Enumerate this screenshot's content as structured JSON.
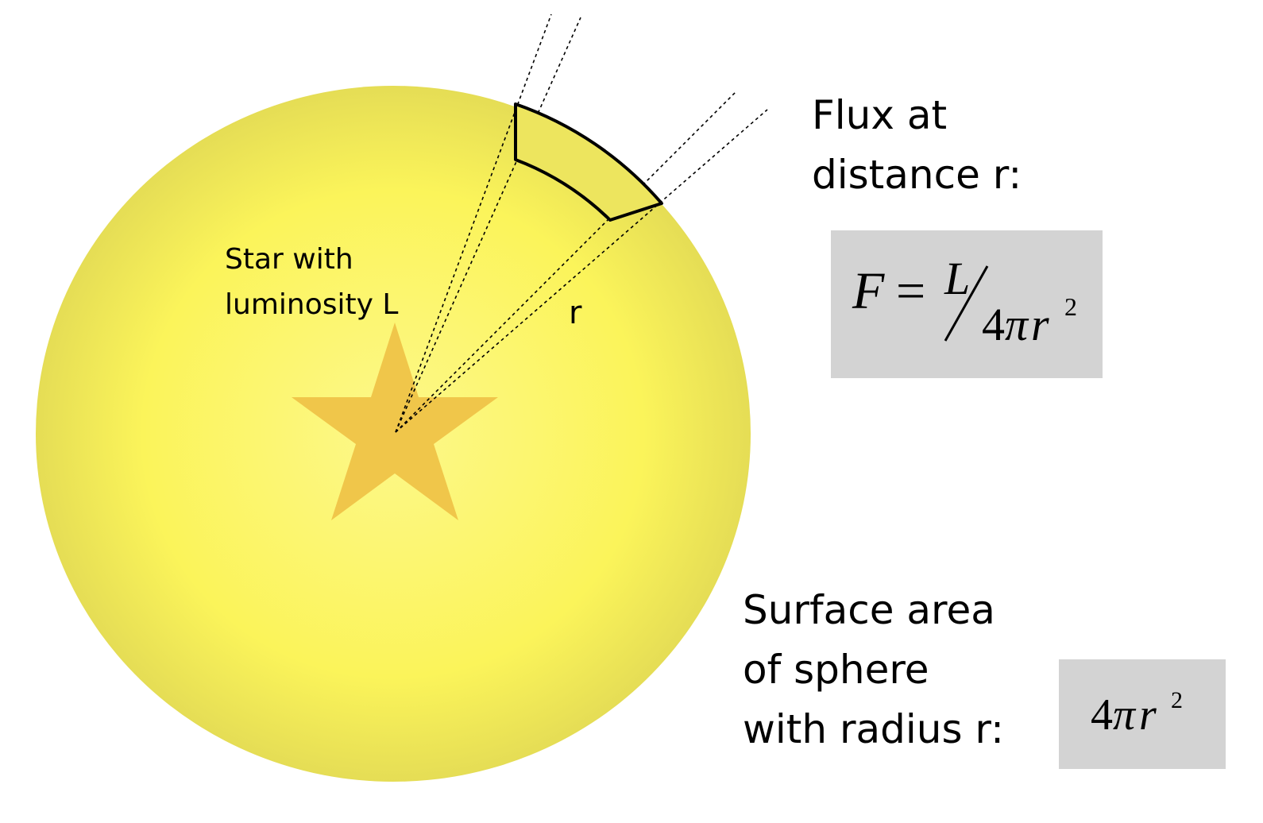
{
  "labels": {
    "star": [
      "Star with",
      "luminosity L"
    ],
    "radius": "r",
    "flux_heading": [
      "Flux at",
      "distance r:"
    ],
    "surface_heading": [
      "Surface area",
      "of sphere",
      "with radius r:"
    ]
  },
  "formulas": {
    "flux": {
      "lhs": "F",
      "equals": "=",
      "numerator": "L",
      "coefficient": "4",
      "pi": "π",
      "var": "r",
      "exponent": "2"
    },
    "area": {
      "coefficient": "4",
      "pi": "π",
      "var": "r",
      "exponent": "2"
    }
  },
  "colors": {
    "sphere_center": "#fdf88a",
    "sphere_edge": "#e5dd55",
    "star": "#f0c64a",
    "formula_box": "#d3d3d3",
    "outline": "#000000"
  }
}
